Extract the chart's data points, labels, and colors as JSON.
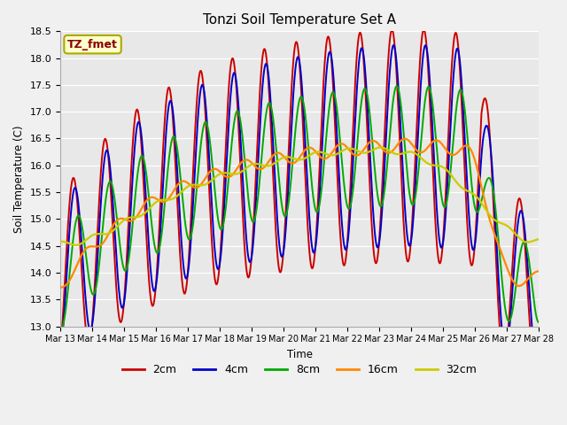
{
  "title": "Tonzi Soil Temperature Set A",
  "xlabel": "Time",
  "ylabel": "Soil Temperature (C)",
  "ylim": [
    13.0,
    18.5
  ],
  "yticks": [
    13.0,
    13.5,
    14.0,
    14.5,
    15.0,
    15.5,
    16.0,
    16.5,
    17.0,
    17.5,
    18.0,
    18.5
  ],
  "xtick_labels": [
    "Mar 13",
    "Mar 14",
    "Mar 15",
    "Mar 16",
    "Mar 17",
    "Mar 18",
    "Mar 19",
    "Mar 20",
    "Mar 21",
    "Mar 22",
    "Mar 23",
    "Mar 24",
    "Mar 25",
    "Mar 26",
    "Mar 27",
    "Mar 28"
  ],
  "series_colors": [
    "#cc0000",
    "#0000cc",
    "#00aa00",
    "#ff8800",
    "#cccc00"
  ],
  "series_labels": [
    "2cm",
    "4cm",
    "8cm",
    "16cm",
    "32cm"
  ],
  "fig_bg_color": "#f0f0f0",
  "plot_bg_color": "#e8e8e8",
  "label_box_text": "TZ_fmet",
  "label_box_bg": "#ffffcc",
  "label_box_text_color": "#880000",
  "label_box_edge_color": "#aaaa00"
}
